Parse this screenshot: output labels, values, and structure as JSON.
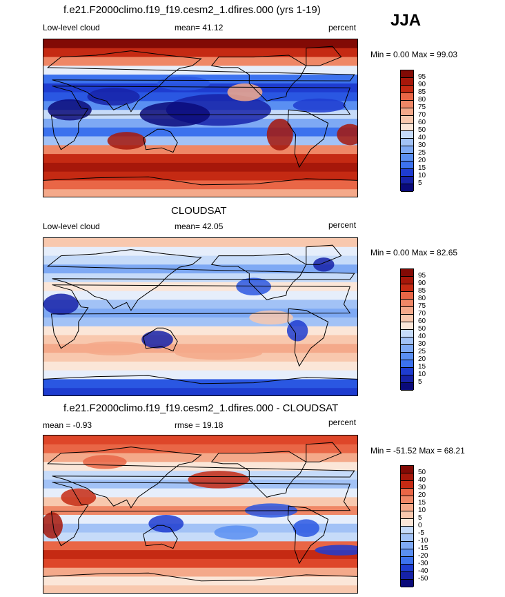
{
  "season": "JJA",
  "colors": {
    "levels": [
      "#0a0a7a",
      "#1622a8",
      "#1e3cd0",
      "#2a57e2",
      "#3c72ee",
      "#5a8ff2",
      "#7ea9f4",
      "#a2c2f6",
      "#c6dbf9",
      "#e6eefb",
      "#fbe6d8",
      "#f8c8ae",
      "#f4a98a",
      "#ef8766",
      "#e96646",
      "#de4629",
      "#c52a13",
      "#a6170a",
      "#820a05"
    ],
    "diff": [
      "#0a0a7a",
      "#1622a8",
      "#1e3cd0",
      "#2a57e2",
      "#3c72ee",
      "#5a8ff2",
      "#7ea9f4",
      "#a2c2f6",
      "#c6dbf9",
      "#e6eefb",
      "#fbe6d8",
      "#f8c8ae",
      "#f4a98a",
      "#ef8766",
      "#e96646",
      "#de4629",
      "#c52a13",
      "#a6170a",
      "#820a05"
    ]
  },
  "panels": [
    {
      "id": "model",
      "title": "f.e21.F2000climo.f19_f19.cesm2_1.dfires.000 (yrs 1-19)",
      "left_label": "Low-level cloud",
      "center_label": "mean=  41.12",
      "right_label": "percent",
      "minmax": "Min =   0.00 Max =  99.03",
      "ticks": [
        "95",
        "90",
        "85",
        "80",
        "75",
        "70",
        "60",
        "50",
        "40",
        "30",
        "25",
        "20",
        "15",
        "10",
        "5"
      ]
    },
    {
      "id": "obs",
      "title": "CLOUDSAT",
      "left_label": "Low-level cloud",
      "center_label": "mean=  42.05",
      "right_label": "percent",
      "minmax": "Min =   0.00 Max =  82.65",
      "ticks": [
        "95",
        "90",
        "85",
        "80",
        "75",
        "70",
        "60",
        "50",
        "40",
        "30",
        "25",
        "20",
        "15",
        "10",
        "5"
      ]
    },
    {
      "id": "diff",
      "title": "f.e21.F2000climo.f19_f19.cesm2_1.dfires.000 - CLOUDSAT",
      "left_label": "mean =  -0.93",
      "center_label": "rmse =  19.18",
      "right_label": "percent",
      "minmax": "Min = -51.52 Max =  68.21",
      "ticks": [
        "50",
        "40",
        "30",
        "20",
        "15",
        "10",
        "5",
        "0",
        "-5",
        "-10",
        "-15",
        "-20",
        "-30",
        "-40",
        "-50"
      ]
    }
  ]
}
